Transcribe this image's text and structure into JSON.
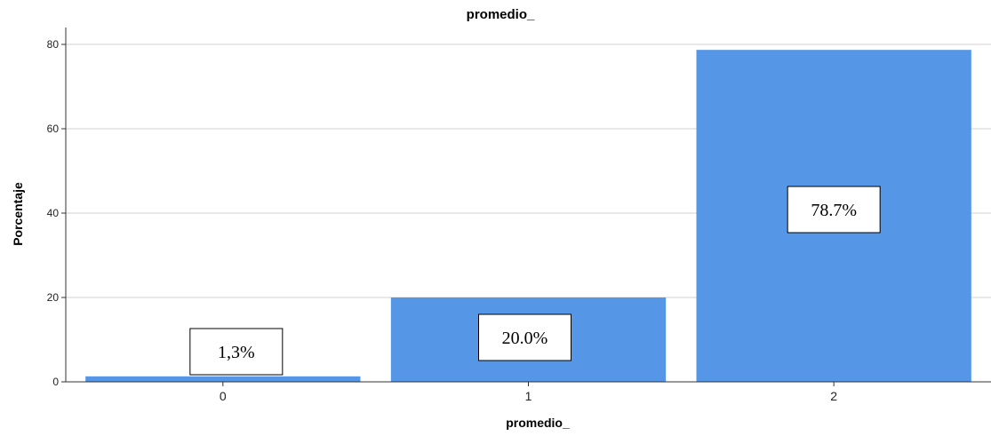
{
  "chart_data": {
    "type": "bar",
    "title": "promedio_",
    "xlabel": "promedio_",
    "ylabel": "Porcentaje",
    "categories": [
      "0",
      "1",
      "2"
    ],
    "values": [
      1.3,
      20.0,
      78.7
    ],
    "data_labels": [
      "1,3%",
      "20.0%",
      "78.7%"
    ],
    "ylim": [
      0,
      80
    ],
    "yticks": [
      "0",
      "20",
      "40",
      "60",
      "80"
    ],
    "grid": true,
    "legend": "none",
    "colors": {
      "bar": "#5596e6",
      "gridline": "#d0d0d0",
      "axis": "#333333"
    }
  }
}
